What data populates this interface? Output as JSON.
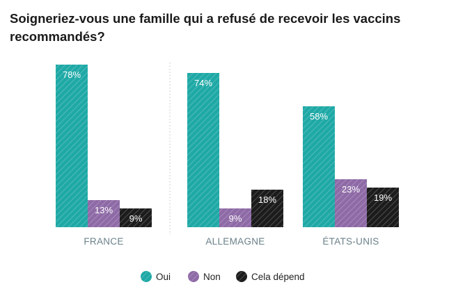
{
  "title": "Soigneriez-vous une famille qui a refusé de recevoir les vaccins recommandés?",
  "chart_data": {
    "type": "bar",
    "categories": [
      "FRANCE",
      "ALLEMAGNE",
      "ÉTATS-UNIS"
    ],
    "series": [
      {
        "name": "Oui",
        "values": [
          78,
          74,
          58
        ],
        "color": "#1fa9a6"
      },
      {
        "name": "Non",
        "values": [
          13,
          9,
          23
        ],
        "color": "#8e6aa6"
      },
      {
        "name": "Cela dépend",
        "values": [
          9,
          18,
          19
        ],
        "color": "#1c1c1c"
      }
    ],
    "value_suffix": "%",
    "ylim": [
      0,
      100
    ],
    "grid": false,
    "legend": "bottom",
    "separator": "dotted-vertical-between-first-and-second-group"
  }
}
